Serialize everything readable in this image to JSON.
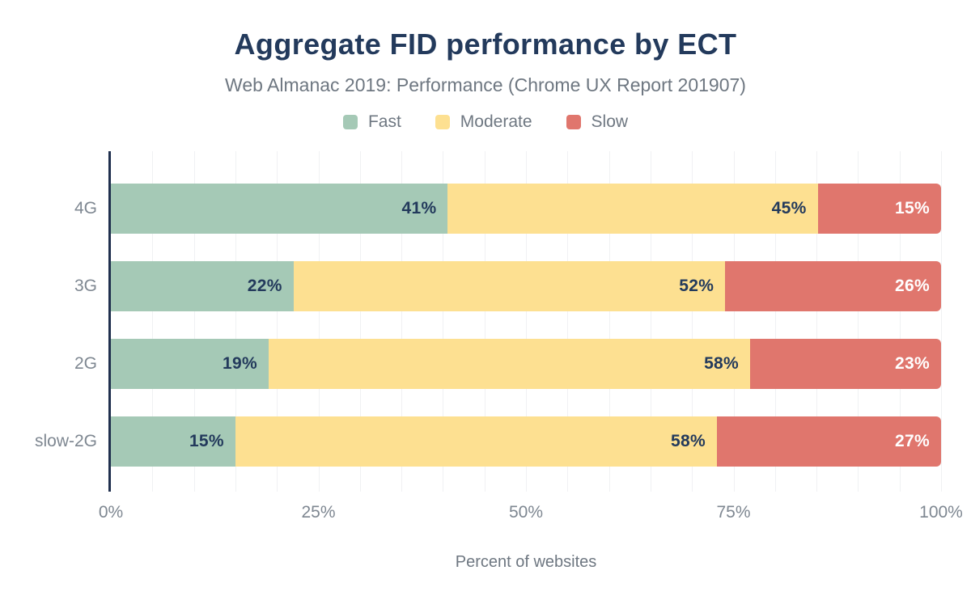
{
  "chart_data": {
    "type": "bar",
    "variant": "horizontal-stacked",
    "title": "Aggregate FID performance by ECT",
    "subtitle": "Web Almanac 2019: Performance (Chrome UX Report 201907)",
    "xlabel": "Percent of websites",
    "xlim": [
      0,
      100
    ],
    "x_ticks": [
      "0%",
      "25%",
      "50%",
      "75%",
      "100%"
    ],
    "x_tick_positions": [
      0,
      25,
      50,
      75,
      100
    ],
    "grid": "vertical lines every 5%",
    "legend_position": "top-center",
    "categories": [
      "4G",
      "3G",
      "2G",
      "slow-2G"
    ],
    "series": [
      {
        "name": "Fast",
        "color": "#a5c9b6",
        "label_color": "#233a5c",
        "values": [
          41,
          22,
          19,
          15
        ]
      },
      {
        "name": "Moderate",
        "color": "#fde091",
        "label_color": "#233a5c",
        "values": [
          45,
          52,
          58,
          58
        ]
      },
      {
        "name": "Slow",
        "color": "#e0766d",
        "label_color": "#ffffff",
        "values": [
          15,
          26,
          23,
          27
        ]
      }
    ]
  },
  "colors": {
    "title_navy": "#233a5c",
    "axis_line_navy": "#20304e",
    "muted_text_gray": "#6e7781",
    "axis_text_gray": "#7e8791",
    "gridline_gray": "#f0f1f3",
    "background": "#ffffff"
  }
}
